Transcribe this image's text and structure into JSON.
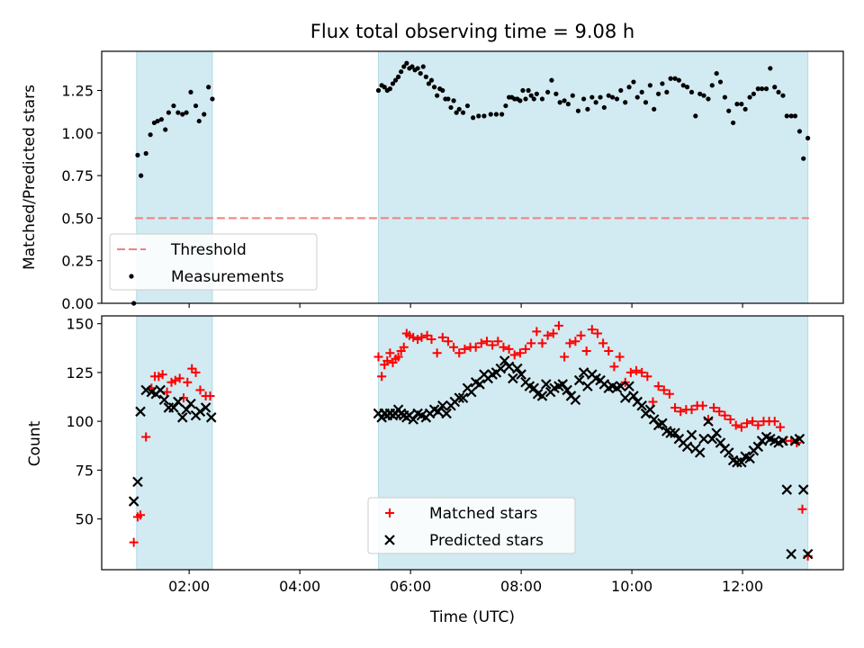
{
  "chart_data": [
    {
      "type": "scatter",
      "title": "Flux total observing time = 9.08 h",
      "xlabel": "",
      "ylabel": "Matched/Predicted stars",
      "xlim": [
        0.42,
        13.82
      ],
      "ylim": [
        0,
        1.48
      ],
      "yticks": [
        "0.00",
        "0.25",
        "0.50",
        "0.75",
        "1.00",
        "1.25"
      ],
      "yticks_values": [
        0,
        0.25,
        0.5,
        0.75,
        1.0,
        1.25
      ],
      "xticks_values": [
        2,
        4,
        6,
        8,
        10,
        12
      ],
      "shaded_intervals": [
        [
          1.05,
          2.42
        ],
        [
          5.42,
          13.18
        ]
      ],
      "shade_color": "#add8e6",
      "legend": {
        "position": "lower-left",
        "entries": [
          "Threshold",
          "Measurements"
        ]
      },
      "threshold": {
        "name": "Threshold",
        "y": 0.5,
        "x_range": [
          1.02,
          13.2
        ],
        "color": "#f08080",
        "style": "dashed"
      },
      "series": [
        {
          "name": "Measurements",
          "marker": "dot",
          "color": "#000000",
          "x": [
            1.0,
            1.07,
            1.13,
            1.22,
            1.3,
            1.37,
            1.43,
            1.5,
            1.57,
            1.63,
            1.72,
            1.8,
            1.88,
            1.95,
            2.03,
            2.12,
            2.18,
            2.27,
            2.35,
            2.42,
            5.42,
            5.48,
            5.53,
            5.58,
            5.63,
            5.68,
            5.73,
            5.78,
            5.83,
            5.88,
            5.93,
            5.98,
            6.03,
            6.08,
            6.13,
            6.18,
            6.23,
            6.28,
            6.33,
            6.38,
            6.43,
            6.48,
            6.53,
            6.58,
            6.63,
            6.68,
            6.73,
            6.78,
            6.83,
            6.88,
            6.95,
            7.03,
            7.13,
            7.23,
            7.33,
            7.45,
            7.55,
            7.65,
            7.72,
            7.78,
            7.83,
            7.88,
            7.93,
            7.98,
            8.03,
            8.08,
            8.13,
            8.18,
            8.23,
            8.28,
            8.38,
            8.48,
            8.55,
            8.63,
            8.7,
            8.78,
            8.85,
            8.93,
            9.03,
            9.13,
            9.2,
            9.28,
            9.35,
            9.43,
            9.5,
            9.58,
            9.65,
            9.73,
            9.8,
            9.88,
            9.95,
            10.03,
            10.1,
            10.18,
            10.25,
            10.33,
            10.4,
            10.48,
            10.55,
            10.63,
            10.7,
            10.78,
            10.85,
            10.93,
            11.0,
            11.08,
            11.15,
            11.23,
            11.3,
            11.38,
            11.45,
            11.53,
            11.6,
            11.68,
            11.75,
            11.83,
            11.9,
            11.98,
            12.05,
            12.13,
            12.2,
            12.28,
            12.35,
            12.43,
            12.5,
            12.58,
            12.65,
            12.73,
            12.8,
            12.88,
            12.95,
            13.03,
            13.1,
            13.18
          ],
          "y": [
            0.0,
            0.87,
            0.75,
            0.88,
            0.99,
            1.06,
            1.07,
            1.08,
            1.02,
            1.12,
            1.16,
            1.12,
            1.11,
            1.12,
            1.24,
            1.16,
            1.07,
            1.11,
            1.27,
            1.2,
            1.25,
            1.28,
            1.27,
            1.25,
            1.26,
            1.29,
            1.31,
            1.33,
            1.36,
            1.39,
            1.41,
            1.38,
            1.39,
            1.37,
            1.38,
            1.35,
            1.39,
            1.33,
            1.29,
            1.31,
            1.27,
            1.22,
            1.26,
            1.25,
            1.2,
            1.2,
            1.15,
            1.19,
            1.12,
            1.14,
            1.12,
            1.16,
            1.09,
            1.1,
            1.1,
            1.11,
            1.11,
            1.11,
            1.16,
            1.21,
            1.21,
            1.2,
            1.2,
            1.19,
            1.25,
            1.2,
            1.25,
            1.22,
            1.2,
            1.23,
            1.2,
            1.24,
            1.31,
            1.23,
            1.18,
            1.19,
            1.17,
            1.22,
            1.13,
            1.2,
            1.14,
            1.21,
            1.18,
            1.21,
            1.15,
            1.22,
            1.21,
            1.2,
            1.25,
            1.18,
            1.27,
            1.3,
            1.21,
            1.24,
            1.18,
            1.28,
            1.14,
            1.23,
            1.29,
            1.24,
            1.32,
            1.32,
            1.31,
            1.28,
            1.27,
            1.24,
            1.1,
            1.23,
            1.22,
            1.2,
            1.28,
            1.35,
            1.3,
            1.21,
            1.13,
            1.06,
            1.17,
            1.17,
            1.14,
            1.21,
            1.23,
            1.26,
            1.26,
            1.26,
            1.38,
            1.27,
            1.24,
            1.22,
            1.1,
            1.1,
            1.1,
            1.01,
            0.85,
            0.97
          ]
        }
      ]
    },
    {
      "type": "scatter",
      "title": "",
      "xlabel": "Time (UTC)",
      "ylabel": "Count",
      "xlim": [
        0.42,
        13.82
      ],
      "ylim": [
        24,
        154
      ],
      "yticks": [
        "50",
        "75",
        "100",
        "125",
        "150"
      ],
      "yticks_values": [
        50,
        75,
        100,
        125,
        150
      ],
      "xticks": [
        "02:00",
        "04:00",
        "06:00",
        "08:00",
        "10:00",
        "12:00"
      ],
      "xticks_values": [
        2,
        4,
        6,
        8,
        10,
        12
      ],
      "shaded_intervals": [
        [
          1.05,
          2.42
        ],
        [
          5.42,
          13.18
        ]
      ],
      "shade_color": "#add8e6",
      "legend": {
        "position": "lower-center",
        "entries": [
          "Matched stars",
          "Predicted stars"
        ]
      },
      "series": [
        {
          "name": "Matched stars",
          "marker": "plus",
          "color": "#ff0000",
          "x": [
            1.0,
            1.07,
            1.12,
            1.22,
            1.32,
            1.38,
            1.45,
            1.52,
            1.6,
            1.68,
            1.75,
            1.83,
            1.9,
            1.97,
            2.05,
            2.12,
            2.2,
            2.3,
            2.38,
            5.42,
            5.48,
            5.53,
            5.58,
            5.63,
            5.68,
            5.73,
            5.78,
            5.83,
            5.88,
            5.93,
            5.98,
            6.05,
            6.13,
            6.2,
            6.3,
            6.38,
            6.48,
            6.58,
            6.68,
            6.78,
            6.88,
            6.98,
            7.08,
            7.18,
            7.28,
            7.38,
            7.48,
            7.58,
            7.68,
            7.78,
            7.88,
            7.98,
            8.08,
            8.18,
            8.28,
            8.38,
            8.48,
            8.58,
            8.68,
            8.78,
            8.88,
            8.98,
            9.08,
            9.18,
            9.28,
            9.38,
            9.48,
            9.58,
            9.68,
            9.78,
            9.88,
            9.98,
            10.08,
            10.18,
            10.28,
            10.38,
            10.48,
            10.58,
            10.68,
            10.78,
            10.88,
            10.98,
            11.08,
            11.18,
            11.28,
            11.38,
            11.48,
            11.58,
            11.68,
            11.78,
            11.88,
            11.98,
            12.08,
            12.18,
            12.28,
            12.38,
            12.48,
            12.58,
            12.68,
            12.78,
            12.88,
            12.98,
            13.08,
            13.18
          ],
          "y": [
            38,
            51,
            52,
            92,
            117,
            123,
            123,
            124,
            115,
            120,
            121,
            122,
            112,
            120,
            127,
            125,
            116,
            113,
            113,
            133,
            123,
            129,
            131,
            135,
            130,
            132,
            133,
            136,
            138,
            145,
            144,
            143,
            142,
            143,
            144,
            142,
            135,
            143,
            141,
            138,
            135,
            137,
            138,
            138,
            140,
            141,
            139,
            141,
            138,
            137,
            134,
            135,
            137,
            140,
            146,
            140,
            144,
            145,
            149,
            133,
            140,
            141,
            144,
            136,
            147,
            145,
            140,
            136,
            128,
            133,
            120,
            125,
            126,
            125,
            123,
            110,
            118,
            116,
            114,
            107,
            105,
            106,
            106,
            108,
            108,
            101,
            107,
            105,
            103,
            101,
            98,
            97,
            99,
            100,
            98,
            100,
            100,
            100,
            97,
            90,
            90,
            89,
            55,
            31
          ]
        },
        {
          "name": "Predicted stars",
          "marker": "x",
          "color": "#000000",
          "x": [
            1.0,
            1.07,
            1.12,
            1.22,
            1.32,
            1.4,
            1.48,
            1.55,
            1.63,
            1.72,
            1.8,
            1.88,
            1.95,
            2.03,
            2.12,
            2.2,
            2.3,
            2.4,
            5.42,
            5.48,
            5.53,
            5.58,
            5.63,
            5.68,
            5.73,
            5.78,
            5.83,
            5.88,
            5.93,
            5.98,
            6.05,
            6.13,
            6.2,
            6.28,
            6.35,
            6.43,
            6.5,
            6.58,
            6.65,
            6.73,
            6.8,
            6.88,
            6.95,
            7.03,
            7.1,
            7.18,
            7.25,
            7.33,
            7.4,
            7.48,
            7.55,
            7.63,
            7.7,
            7.78,
            7.85,
            7.93,
            8.0,
            8.08,
            8.15,
            8.23,
            8.3,
            8.38,
            8.45,
            8.53,
            8.6,
            8.68,
            8.75,
            8.83,
            8.9,
            8.98,
            9.05,
            9.13,
            9.2,
            9.28,
            9.35,
            9.43,
            9.5,
            9.58,
            9.65,
            9.73,
            9.8,
            9.88,
            9.95,
            10.03,
            10.1,
            10.18,
            10.25,
            10.33,
            10.4,
            10.48,
            10.55,
            10.63,
            10.7,
            10.78,
            10.85,
            10.93,
            11.0,
            11.08,
            11.15,
            11.23,
            11.3,
            11.38,
            11.45,
            11.53,
            11.6,
            11.68,
            11.75,
            11.83,
            11.9,
            11.98,
            12.05,
            12.13,
            12.2,
            12.28,
            12.35,
            12.43,
            12.5,
            12.58,
            12.65,
            12.73,
            12.8,
            12.88,
            12.95,
            13.03,
            13.1,
            13.18
          ],
          "y": [
            59,
            69,
            105,
            116,
            115,
            114,
            116,
            111,
            107,
            107,
            110,
            102,
            106,
            109,
            103,
            105,
            107,
            102,
            104,
            102,
            104,
            103,
            104,
            103,
            104,
            106,
            104,
            103,
            102,
            103,
            101,
            104,
            103,
            102,
            104,
            106,
            105,
            108,
            104,
            108,
            110,
            112,
            112,
            117,
            115,
            120,
            119,
            124,
            122,
            124,
            125,
            127,
            131,
            128,
            122,
            127,
            124,
            120,
            118,
            117,
            114,
            113,
            119,
            115,
            117,
            118,
            119,
            116,
            113,
            111,
            121,
            125,
            118,
            124,
            122,
            121,
            119,
            117,
            118,
            117,
            118,
            112,
            118,
            113,
            110,
            108,
            104,
            106,
            101,
            98,
            99,
            95,
            94,
            94,
            91,
            89,
            87,
            93,
            86,
            84,
            91,
            100,
            91,
            94,
            89,
            86,
            84,
            80,
            79,
            79,
            82,
            81,
            85,
            87,
            90,
            92,
            91,
            90,
            89,
            90,
            65,
            32,
            90,
            91,
            65,
            32
          ]
        }
      ]
    }
  ]
}
